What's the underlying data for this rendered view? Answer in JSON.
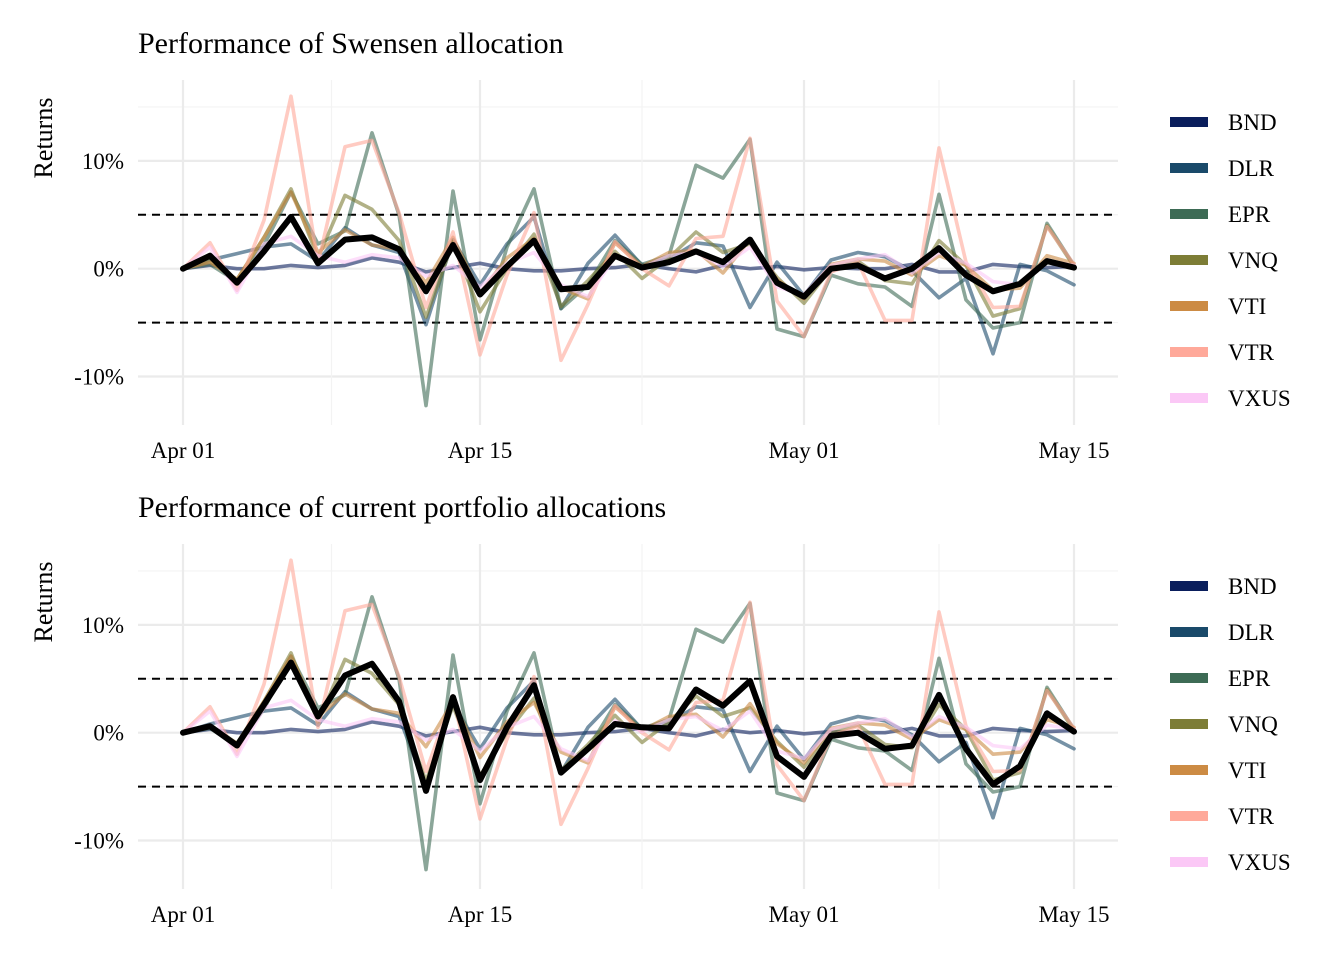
{
  "colors": {
    "BND": "#0a1e5c",
    "DLR": "#1a4a6a",
    "EPR": "#3d6b55",
    "VNQ": "#7d7d36",
    "VTI": "#cc8b44",
    "VTR": "#ffa99a",
    "VXUS": "#fbc8f6",
    "portfolio": "#000000"
  },
  "chart_data": [
    {
      "type": "line",
      "title": "Performance of Swensen allocation",
      "xlabel": "",
      "ylabel": "Returns",
      "x_ticks": [
        "Apr 01",
        "Apr 15",
        "May 01",
        "May 15"
      ],
      "y_ticks": [
        "-10%",
        "0%",
        "10%"
      ],
      "ylim": [
        -14.5,
        17.5
      ],
      "reference_lines": [
        5,
        -5
      ],
      "grid": true,
      "legend": "right",
      "legend_entries": [
        "BND",
        "DLR",
        "EPR",
        "VNQ",
        "VTI",
        "VTR",
        "VXUS"
      ],
      "x": [
        "Apr 01",
        "Apr 02",
        "Apr 03",
        "Apr 04",
        "Apr 05",
        "Apr 06",
        "Apr 07",
        "Apr 08",
        "Apr 09",
        "Apr 13",
        "Apr 14",
        "Apr 15",
        "Apr 16",
        "Apr 17",
        "Apr 20",
        "Apr 21",
        "Apr 22",
        "Apr 23",
        "Apr 24",
        "Apr 27",
        "Apr 28",
        "Apr 29",
        "Apr 30",
        "May 01",
        "May 04",
        "May 05",
        "May 06",
        "May 07",
        "May 08",
        "May 11",
        "May 12",
        "May 13",
        "May 14",
        "May 15"
      ],
      "series": [
        {
          "name": "BND",
          "values": [
            0,
            0.3,
            0,
            0,
            0.3,
            0.1,
            0.3,
            1.0,
            0.6,
            -0.3,
            0.1,
            0.5,
            0,
            -0.2,
            -0.2,
            0,
            0.1,
            0.4,
            0,
            -0.3,
            0.3,
            0,
            0.2,
            -0.1,
            0.1,
            0,
            0,
            0.4,
            -0.3,
            -0.3,
            0.4,
            0.2,
            0.1,
            0.2
          ]
        },
        {
          "name": "DLR",
          "values": [
            0,
            0.8,
            1.4,
            2.0,
            2.3,
            0.7,
            3.8,
            2.2,
            1.5,
            -5.2,
            2.7,
            -1.5,
            2.3,
            4.8,
            -3.7,
            0.5,
            3.1,
            0.3,
            0.9,
            2.4,
            2.1,
            -3.6,
            0.6,
            -2.5,
            0.8,
            1.5,
            1.1,
            -0.2,
            -2.7,
            -0.9,
            -7.9,
            0.4,
            -0.2,
            -1.5
          ]
        },
        {
          "name": "EPR",
          "values": [
            0,
            0.4,
            -1.2,
            2.2,
            7.1,
            2.3,
            3.5,
            12.6,
            5.0,
            -12.7,
            7.2,
            -6.6,
            2.0,
            7.4,
            -3.7,
            -1.5,
            2.6,
            0.4,
            1.2,
            9.6,
            8.4,
            12.0,
            -5.6,
            -6.3,
            -0.6,
            -1.4,
            -1.7,
            -3.5,
            6.9,
            -2.9,
            -5.5,
            -5.0,
            4.2,
            0.3
          ]
        },
        {
          "name": "VNQ",
          "values": [
            0,
            0.7,
            -1.0,
            2.9,
            7.4,
            1.0,
            6.8,
            5.5,
            2.6,
            -4.5,
            2.5,
            -4.0,
            0,
            3.2,
            -3.5,
            -1.1,
            1.6,
            -0.9,
            1.0,
            3.4,
            1.5,
            2.3,
            -0.8,
            -3.2,
            0,
            0.7,
            -1.1,
            -1.4,
            2.6,
            0.3,
            -4.4,
            -3.7,
            4.0,
            0.2
          ]
        },
        {
          "name": "VTI",
          "values": [
            0,
            0.6,
            -1.0,
            2.9,
            7.1,
            1.5,
            3.6,
            2.2,
            1.8,
            -1.3,
            2.9,
            -2.3,
            1.0,
            2.8,
            -1.8,
            -2.8,
            2.4,
            0.2,
            1.5,
            1.7,
            -0.4,
            2.7,
            -1.0,
            -2.8,
            0.4,
            0.9,
            0.7,
            -0.6,
            1.2,
            0.3,
            -2.0,
            -1.8,
            1.2,
            0.5
          ]
        },
        {
          "name": "VTR",
          "values": [
            0,
            2.4,
            -2.0,
            4.5,
            16.0,
            0.5,
            11.3,
            11.9,
            5.2,
            -3.6,
            3.4,
            -8.0,
            -0.6,
            5.2,
            -8.5,
            -3.3,
            2.5,
            0,
            -1.6,
            2.8,
            3.0,
            12.1,
            -3.0,
            -6.3,
            -0.3,
            0.6,
            -4.8,
            -4.8,
            11.2,
            0.6,
            -3.6,
            -3.5,
            3.9,
            0.4
          ]
        },
        {
          "name": "VXUS",
          "values": [
            0,
            2.0,
            -2.2,
            2.3,
            3.0,
            1.2,
            0.6,
            1.3,
            1.0,
            -0.7,
            0.3,
            -1.7,
            0.5,
            1.5,
            -1.5,
            -2.6,
            1.1,
            0.1,
            1.2,
            1.5,
            0.2,
            2.0,
            -1.7,
            -2.4,
            0.3,
            0.9,
            1.3,
            -0.4,
            1.5,
            0.5,
            -1.2,
            -1.5,
            0.7,
            0.3
          ]
        },
        {
          "name": "",
          "values": [
            0,
            1.2,
            -1.3,
            1.6,
            4.8,
            0.5,
            2.7,
            2.9,
            1.8,
            -2.1,
            2.2,
            -2.4,
            0.2,
            2.6,
            -1.9,
            -1.7,
            1.2,
            0.1,
            0.6,
            1.6,
            0.6,
            2.7,
            -1.3,
            -2.6,
            0,
            0.3,
            -0.9,
            0,
            1.9,
            -0.6,
            -2.1,
            -1.4,
            0.7,
            0.1
          ]
        }
      ]
    },
    {
      "type": "line",
      "title": "Performance of current portfolio allocations",
      "xlabel": "",
      "ylabel": "Returns",
      "x_ticks": [
        "Apr 01",
        "Apr 15",
        "May 01",
        "May 15"
      ],
      "y_ticks": [
        "-10%",
        "0%",
        "10%"
      ],
      "ylim": [
        -14.5,
        17.5
      ],
      "reference_lines": [
        5,
        -5
      ],
      "grid": true,
      "legend": "right",
      "legend_entries": [
        "BND",
        "DLR",
        "EPR",
        "VNQ",
        "VTI",
        "VTR",
        "VXUS"
      ],
      "x": [
        "Apr 01",
        "Apr 02",
        "Apr 03",
        "Apr 04",
        "Apr 05",
        "Apr 06",
        "Apr 07",
        "Apr 08",
        "Apr 09",
        "Apr 13",
        "Apr 14",
        "Apr 15",
        "Apr 16",
        "Apr 17",
        "Apr 20",
        "Apr 21",
        "Apr 22",
        "Apr 23",
        "Apr 24",
        "Apr 27",
        "Apr 28",
        "Apr 29",
        "Apr 30",
        "May 01",
        "May 04",
        "May 05",
        "May 06",
        "May 07",
        "May 08",
        "May 11",
        "May 12",
        "May 13",
        "May 14",
        "May 15"
      ],
      "series": [
        {
          "name": "BND",
          "values": [
            0,
            0.3,
            0,
            0,
            0.3,
            0.1,
            0.3,
            1.0,
            0.6,
            -0.3,
            0.1,
            0.5,
            0,
            -0.2,
            -0.2,
            0,
            0.1,
            0.4,
            0,
            -0.3,
            0.3,
            0,
            0.2,
            -0.1,
            0.1,
            0,
            0,
            0.4,
            -0.3,
            -0.3,
            0.4,
            0.2,
            0.1,
            0.2
          ]
        },
        {
          "name": "DLR",
          "values": [
            0,
            0.8,
            1.4,
            2.0,
            2.3,
            0.7,
            3.8,
            2.2,
            1.5,
            -5.2,
            2.7,
            -1.5,
            2.3,
            4.8,
            -3.7,
            0.5,
            3.1,
            0.3,
            0.9,
            2.4,
            2.1,
            -3.6,
            0.6,
            -2.5,
            0.8,
            1.5,
            1.1,
            -0.2,
            -2.7,
            -0.9,
            -7.9,
            0.4,
            -0.2,
            -1.5
          ]
        },
        {
          "name": "EPR",
          "values": [
            0,
            0.4,
            -1.2,
            2.2,
            7.1,
            2.3,
            3.5,
            12.6,
            5.0,
            -12.7,
            7.2,
            -6.6,
            2.0,
            7.4,
            -3.7,
            -1.5,
            2.6,
            0.4,
            1.2,
            9.6,
            8.4,
            12.0,
            -5.6,
            -6.3,
            -0.6,
            -1.4,
            -1.7,
            -3.5,
            6.9,
            -2.9,
            -5.5,
            -5.0,
            4.2,
            0.3
          ]
        },
        {
          "name": "VNQ",
          "values": [
            0,
            0.7,
            -1.0,
            2.9,
            7.4,
            1.0,
            6.8,
            5.5,
            2.6,
            -4.5,
            2.5,
            -4.0,
            0,
            3.2,
            -3.5,
            -1.1,
            1.6,
            -0.9,
            1.0,
            3.4,
            1.5,
            2.3,
            -0.8,
            -3.2,
            0,
            0.7,
            -1.1,
            -1.4,
            2.6,
            0.3,
            -4.4,
            -3.7,
            4.0,
            0.2
          ]
        },
        {
          "name": "VTI",
          "values": [
            0,
            0.6,
            -1.0,
            2.9,
            7.1,
            1.5,
            3.6,
            2.2,
            1.8,
            -1.3,
            2.9,
            -2.3,
            1.0,
            2.8,
            -1.8,
            -2.8,
            2.4,
            0.2,
            1.5,
            1.7,
            -0.4,
            2.7,
            -1.0,
            -2.8,
            0.4,
            0.9,
            0.7,
            -0.6,
            1.2,
            0.3,
            -2.0,
            -1.8,
            1.2,
            0.5
          ]
        },
        {
          "name": "VTR",
          "values": [
            0,
            2.4,
            -2.0,
            4.5,
            16.0,
            0.5,
            11.3,
            11.9,
            5.2,
            -3.6,
            3.4,
            -8.0,
            -0.6,
            5.2,
            -8.5,
            -3.3,
            2.5,
            0,
            -1.6,
            2.8,
            3.0,
            12.1,
            -3.0,
            -6.3,
            -0.3,
            0.6,
            -4.8,
            -4.8,
            11.2,
            0.6,
            -3.6,
            -3.5,
            3.9,
            0.4
          ]
        },
        {
          "name": "VXUS",
          "values": [
            0,
            2.0,
            -2.2,
            2.3,
            3.0,
            1.2,
            0.6,
            1.3,
            1.0,
            -0.7,
            0.3,
            -1.7,
            0.5,
            1.5,
            -1.5,
            -2.6,
            1.1,
            0.1,
            1.2,
            1.5,
            0.2,
            2.0,
            -1.7,
            -2.4,
            0.3,
            0.9,
            1.3,
            -0.4,
            1.5,
            0.5,
            -1.2,
            -1.5,
            0.7,
            0.3
          ]
        },
        {
          "name": "",
          "values": [
            0,
            0.6,
            -1.2,
            2.6,
            6.5,
            1.5,
            5.3,
            6.4,
            2.9,
            -5.4,
            3.3,
            -4.4,
            0.5,
            4.4,
            -3.7,
            -1.5,
            0.8,
            0.5,
            0.4,
            4.0,
            2.5,
            4.8,
            -2.2,
            -4.1,
            -0.3,
            0,
            -1.5,
            -1.2,
            3.5,
            -1.5,
            -4.8,
            -3.1,
            1.8,
            0.1
          ]
        }
      ]
    }
  ]
}
